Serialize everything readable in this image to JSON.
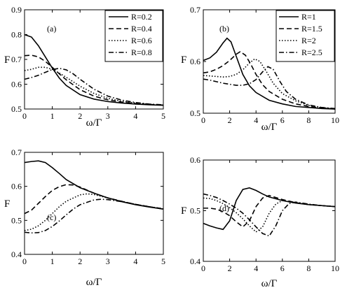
{
  "figure": {
    "ylabel": "F",
    "xlabel": "ω/Γ"
  },
  "styles": {
    "solid": "",
    "dashed": "7,4",
    "dotted": "1.5,2.5",
    "dashdot": "7,3,1.5,3"
  },
  "chart_data": [
    {
      "type": "line",
      "panel": "(a)",
      "xlabel": "ω/Γ",
      "ylabel": "F",
      "xlim": [
        0,
        5
      ],
      "ylim": [
        0.5,
        0.9
      ],
      "xticks": [
        "0",
        "1",
        "2",
        "3",
        "4",
        "5"
      ],
      "yticks": [
        "0.5",
        "0.6",
        "0.7",
        "0.8",
        "0.9"
      ],
      "legend": "top-right",
      "series": [
        {
          "name": "R=0.2",
          "style": "solid",
          "x": [
            0,
            0.25,
            0.5,
            0.75,
            1.0,
            1.25,
            1.5,
            2.0,
            2.5,
            3.0,
            3.5,
            4.0,
            4.5,
            5.0
          ],
          "y": [
            0.8,
            0.79,
            0.755,
            0.71,
            0.665,
            0.625,
            0.595,
            0.558,
            0.54,
            0.53,
            0.524,
            0.52,
            0.517,
            0.515
          ]
        },
        {
          "name": "R=0.4",
          "style": "dashed",
          "x": [
            0,
            0.25,
            0.5,
            0.75,
            1.0,
            1.25,
            1.5,
            2.0,
            2.5,
            3.0,
            3.5,
            4.0,
            4.5,
            5.0
          ],
          "y": [
            0.715,
            0.717,
            0.71,
            0.692,
            0.668,
            0.642,
            0.618,
            0.578,
            0.552,
            0.537,
            0.528,
            0.522,
            0.518,
            0.516
          ]
        },
        {
          "name": "R=0.6",
          "style": "dotted",
          "x": [
            0,
            0.25,
            0.5,
            0.75,
            1.0,
            1.25,
            1.5,
            2.0,
            2.5,
            3.0,
            3.5,
            4.0,
            4.5,
            5.0
          ],
          "y": [
            0.655,
            0.66,
            0.668,
            0.668,
            0.66,
            0.645,
            0.628,
            0.592,
            0.563,
            0.543,
            0.531,
            0.524,
            0.519,
            0.516
          ]
        },
        {
          "name": "R=0.8",
          "style": "dashdot",
          "x": [
            0,
            0.25,
            0.5,
            0.75,
            1.0,
            1.25,
            1.5,
            1.75,
            2.0,
            2.5,
            3.0,
            3.5,
            4.0,
            4.5,
            5.0
          ],
          "y": [
            0.62,
            0.627,
            0.636,
            0.648,
            0.659,
            0.664,
            0.658,
            0.642,
            0.62,
            0.58,
            0.552,
            0.536,
            0.526,
            0.52,
            0.517
          ]
        }
      ]
    },
    {
      "type": "line",
      "panel": "(b)",
      "xlabel": "ω/Γ",
      "ylabel": "F",
      "xlim": [
        0,
        10
      ],
      "ylim": [
        0.5,
        0.7
      ],
      "xticks": [
        "0",
        "2",
        "4",
        "6",
        "8",
        "10"
      ],
      "yticks": [
        "0.5",
        "0.6",
        "0.7"
      ],
      "legend": "top-right",
      "series": [
        {
          "name": "R=1",
          "style": "solid",
          "x": [
            0,
            0.5,
            1.0,
            1.5,
            1.8,
            2.1,
            2.5,
            3.0,
            3.5,
            4.0,
            5.0,
            6.0,
            7.0,
            8.0,
            9.0,
            10.0
          ],
          "y": [
            0.602,
            0.607,
            0.618,
            0.636,
            0.645,
            0.638,
            0.61,
            0.575,
            0.553,
            0.54,
            0.525,
            0.518,
            0.513,
            0.511,
            0.509,
            0.508
          ]
        },
        {
          "name": "R=1.5",
          "style": "dashed",
          "x": [
            0,
            0.5,
            1.0,
            1.5,
            2.0,
            2.5,
            2.8,
            3.2,
            3.6,
            4.0,
            4.5,
            5.0,
            6.0,
            7.0,
            8.0,
            9.0,
            10.0
          ],
          "y": [
            0.578,
            0.58,
            0.585,
            0.592,
            0.602,
            0.614,
            0.619,
            0.612,
            0.595,
            0.575,
            0.555,
            0.542,
            0.527,
            0.518,
            0.513,
            0.51,
            0.508
          ]
        },
        {
          "name": "R=2",
          "style": "dotted",
          "x": [
            0,
            0.5,
            1.0,
            1.5,
            2.0,
            2.5,
            3.0,
            3.5,
            3.9,
            4.3,
            4.8,
            5.3,
            6.0,
            7.0,
            8.0,
            9.0,
            10.0
          ],
          "y": [
            0.573,
            0.572,
            0.571,
            0.57,
            0.571,
            0.575,
            0.584,
            0.597,
            0.605,
            0.6,
            0.58,
            0.558,
            0.538,
            0.524,
            0.515,
            0.511,
            0.508
          ]
        },
        {
          "name": "R=2.5",
          "style": "dashdot",
          "x": [
            0,
            0.5,
            1.0,
            1.5,
            2.0,
            2.5,
            3.0,
            3.5,
            4.0,
            4.5,
            4.9,
            5.3,
            5.8,
            6.3,
            7.0,
            8.0,
            9.0,
            10.0
          ],
          "y": [
            0.566,
            0.564,
            0.561,
            0.558,
            0.556,
            0.554,
            0.554,
            0.557,
            0.565,
            0.58,
            0.59,
            0.585,
            0.562,
            0.542,
            0.527,
            0.516,
            0.511,
            0.509
          ]
        }
      ]
    },
    {
      "type": "line",
      "panel": "(c)",
      "xlabel": "ω/Γ",
      "ylabel": "F",
      "xlim": [
        0,
        5
      ],
      "ylim": [
        0.4,
        0.7
      ],
      "xticks": [
        "0",
        "1",
        "2",
        "3",
        "4",
        "5"
      ],
      "yticks": [
        "0.4",
        "0.5",
        "0.6",
        "0.7"
      ],
      "series": [
        {
          "name": "",
          "style": "solid",
          "x": [
            0,
            0.25,
            0.5,
            0.75,
            1.0,
            1.25,
            1.5,
            2.0,
            2.5,
            3.0,
            3.5,
            4.0,
            4.5,
            5.0
          ],
          "y": [
            0.67,
            0.673,
            0.675,
            0.67,
            0.655,
            0.638,
            0.62,
            0.596,
            0.58,
            0.566,
            0.555,
            0.546,
            0.539,
            0.533
          ]
        },
        {
          "name": "",
          "style": "dashed",
          "x": [
            0,
            0.25,
            0.5,
            0.75,
            1.0,
            1.25,
            1.5,
            1.75,
            2.0,
            2.5,
            3.0,
            3.5,
            4.0,
            4.5,
            5.0
          ],
          "y": [
            0.52,
            0.53,
            0.55,
            0.57,
            0.588,
            0.599,
            0.605,
            0.604,
            0.598,
            0.58,
            0.566,
            0.556,
            0.547,
            0.54,
            0.533
          ]
        },
        {
          "name": "",
          "style": "dotted",
          "x": [
            0,
            0.25,
            0.5,
            0.75,
            1.0,
            1.25,
            1.5,
            2.0,
            2.25,
            2.5,
            3.0,
            3.5,
            4.0,
            4.5,
            5.0
          ],
          "y": [
            0.47,
            0.474,
            0.484,
            0.5,
            0.52,
            0.54,
            0.556,
            0.575,
            0.578,
            0.576,
            0.566,
            0.556,
            0.547,
            0.54,
            0.534
          ]
        },
        {
          "name": "",
          "style": "dashdot",
          "x": [
            0,
            0.25,
            0.5,
            0.75,
            1.0,
            1.25,
            1.5,
            1.75,
            2.0,
            2.5,
            2.75,
            3.0,
            3.5,
            4.0,
            4.5,
            5.0
          ],
          "y": [
            0.465,
            0.463,
            0.464,
            0.47,
            0.482,
            0.498,
            0.516,
            0.533,
            0.546,
            0.56,
            0.562,
            0.561,
            0.555,
            0.547,
            0.54,
            0.534
          ]
        }
      ]
    },
    {
      "type": "line",
      "panel": "(d)",
      "xlabel": "ω/Γ",
      "ylabel": "F",
      "xlim": [
        0,
        10
      ],
      "ylim": [
        0.4,
        0.6
      ],
      "xticks": [
        "0",
        "2",
        "4",
        "6",
        "8",
        "10"
      ],
      "yticks": [
        "0.4",
        "0.5",
        "0.6"
      ],
      "series": [
        {
          "name": "",
          "style": "solid",
          "x": [
            0,
            0.5,
            1.0,
            1.5,
            2.0,
            2.5,
            3.0,
            3.5,
            4.0,
            4.5,
            5.0,
            6.0,
            7.0,
            8.0,
            9.0,
            10.0
          ],
          "y": [
            0.475,
            0.47,
            0.466,
            0.463,
            0.48,
            0.52,
            0.542,
            0.545,
            0.54,
            0.533,
            0.527,
            0.52,
            0.515,
            0.512,
            0.51,
            0.508
          ]
        },
        {
          "name": "",
          "style": "dashed",
          "x": [
            0,
            0.5,
            1.0,
            1.5,
            2.0,
            2.5,
            3.0,
            3.5,
            4.0,
            4.5,
            5.0,
            6.0,
            7.0,
            8.0,
            9.0,
            10.0
          ],
          "y": [
            0.505,
            0.505,
            0.503,
            0.498,
            0.49,
            0.478,
            0.468,
            0.48,
            0.508,
            0.525,
            0.53,
            0.522,
            0.516,
            0.512,
            0.51,
            0.508
          ]
        },
        {
          "name": "",
          "style": "dotted",
          "x": [
            0,
            0.5,
            1.0,
            1.5,
            2.0,
            2.5,
            3.0,
            3.5,
            4.0,
            4.5,
            5.0,
            5.5,
            6.0,
            7.0,
            8.0,
            9.0,
            10.0
          ],
          "y": [
            0.525,
            0.524,
            0.52,
            0.514,
            0.506,
            0.496,
            0.484,
            0.47,
            0.458,
            0.468,
            0.495,
            0.513,
            0.52,
            0.516,
            0.512,
            0.51,
            0.508
          ]
        },
        {
          "name": "",
          "style": "dashdot",
          "x": [
            0,
            0.5,
            1.0,
            1.5,
            2.0,
            2.5,
            3.0,
            3.5,
            4.0,
            4.5,
            5.0,
            5.5,
            6.0,
            6.5,
            7.0,
            8.0,
            9.0,
            10.0
          ],
          "y": [
            0.533,
            0.53,
            0.526,
            0.52,
            0.513,
            0.505,
            0.495,
            0.482,
            0.468,
            0.455,
            0.45,
            0.47,
            0.5,
            0.514,
            0.517,
            0.513,
            0.51,
            0.508
          ]
        }
      ]
    }
  ]
}
